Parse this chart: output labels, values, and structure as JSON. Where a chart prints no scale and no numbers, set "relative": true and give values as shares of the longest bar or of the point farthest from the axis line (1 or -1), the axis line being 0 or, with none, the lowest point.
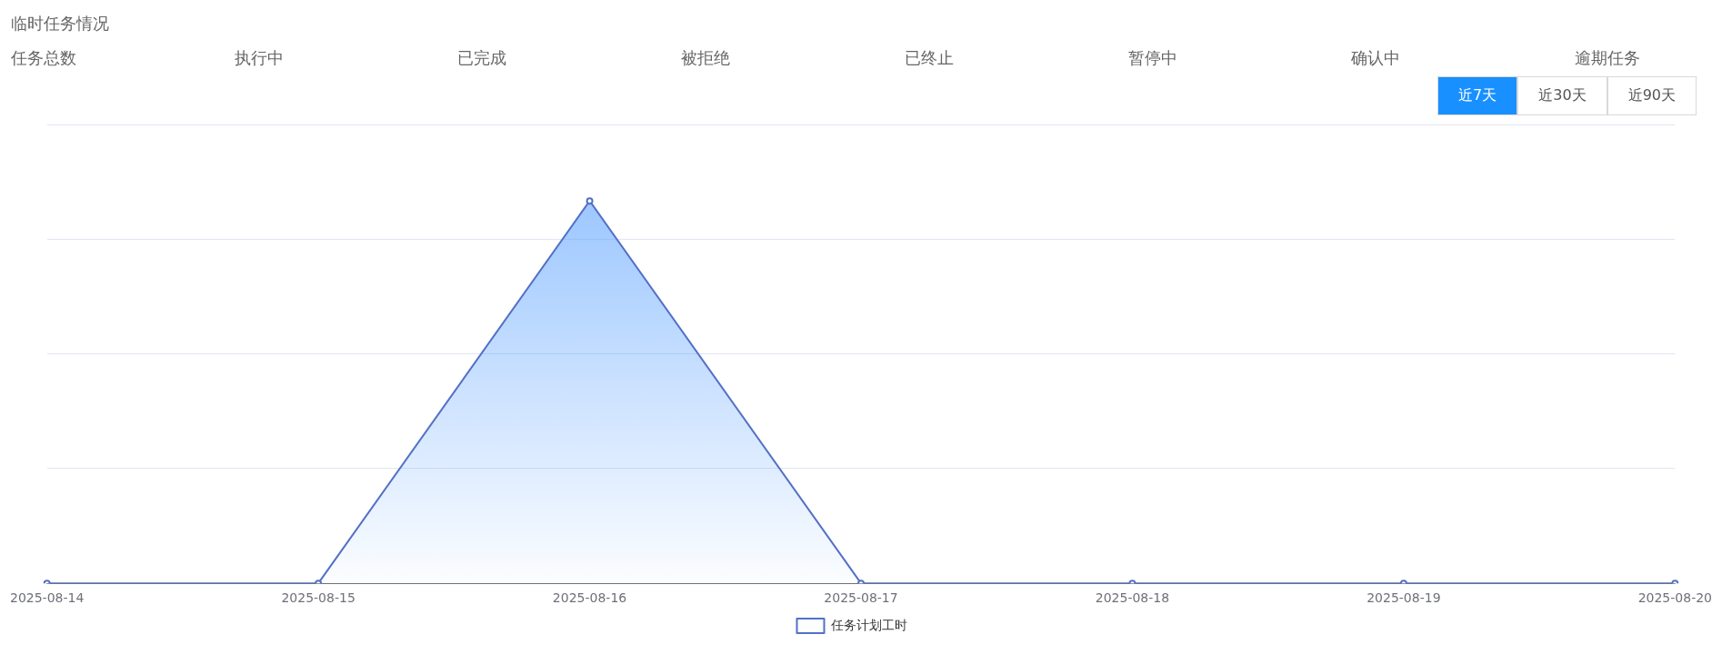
{
  "chart_data": {
    "type": "area",
    "title": "临时任务情况",
    "annotations": [
      "任务总数",
      "执行中",
      "已完成",
      "被拒绝",
      "已终止",
      "暂停中",
      "确认中",
      "逾期任务",
      "近7天",
      "近30天",
      "近90天"
    ],
    "categories": [
      "2025-08-14",
      "2025-08-15",
      "2025-08-16",
      "2025-08-17",
      "2025-08-18",
      "2025-08-19",
      "2025-08-20"
    ],
    "series": [
      {
        "name": "任务计划工时",
        "color": "#5470c6",
        "values": [
          0,
          0,
          1,
          0,
          0,
          0,
          0
        ]
      }
    ],
    "relative": true,
    "grid": "y",
    "legend": "bottom",
    "marker": "circle",
    "line_style": "solid"
  }
}
